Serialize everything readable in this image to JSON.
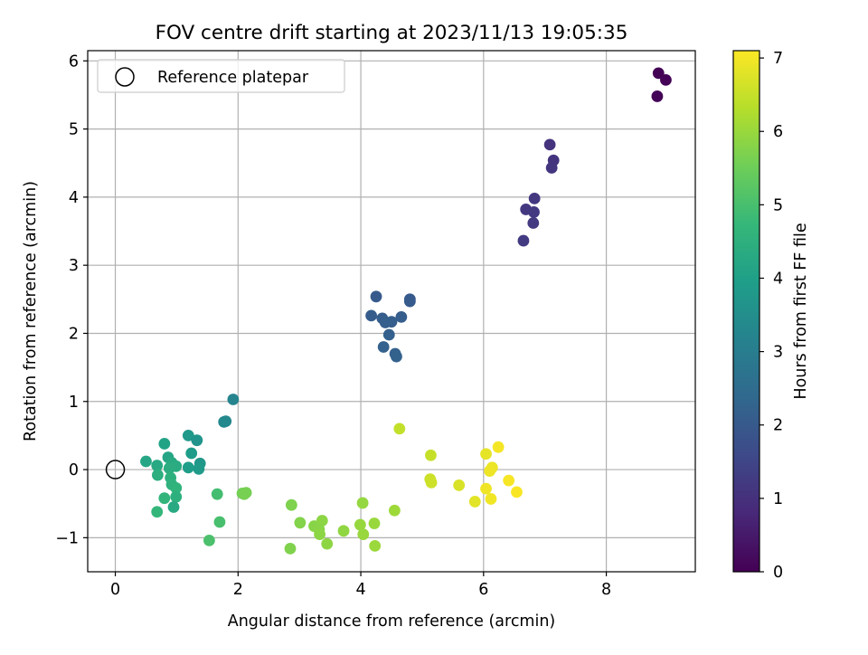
{
  "chart_data": {
    "type": "scatter",
    "title": "FOV centre drift starting at 2023/11/13 19:05:35",
    "xlabel": "Angular distance from reference (arcmin)",
    "ylabel": "Rotation from reference (arcmin)",
    "xlim": [
      -0.45,
      9.45
    ],
    "ylim": [
      -1.5,
      6.15
    ],
    "xticks": [
      0,
      2,
      4,
      6,
      8
    ],
    "yticks": [
      -1,
      0,
      1,
      2,
      3,
      4,
      5,
      6
    ],
    "xtick_labels": [
      "0",
      "2",
      "4",
      "6",
      "8"
    ],
    "ytick_labels": [
      "−1",
      "0",
      "1",
      "2",
      "3",
      "4",
      "5",
      "6"
    ],
    "grid": true,
    "legend": {
      "placement": "top-left",
      "label": "Reference platepar",
      "marker": "hollow-circle"
    },
    "reference_point": {
      "x": 0,
      "y": 0
    },
    "colorbar": {
      "label": "Hours from first FF file",
      "colormap": "viridis",
      "range": [
        0,
        7.1
      ],
      "ticks": [
        0,
        1,
        2,
        3,
        4,
        5,
        6,
        7
      ],
      "tick_labels": [
        "0",
        "1",
        "2",
        "3",
        "4",
        "5",
        "6",
        "7"
      ]
    },
    "colormap_stops": [
      "#440154",
      "#482878",
      "#3e4989",
      "#31688e",
      "#26828e",
      "#1f9e89",
      "#35b779",
      "#6ece58",
      "#b5de2b",
      "#fde725"
    ],
    "points": [
      {
        "x": 8.85,
        "y": 5.82,
        "hours": 0.02
      },
      {
        "x": 8.97,
        "y": 5.72,
        "hours": 0.05
      },
      {
        "x": 8.83,
        "y": 5.48,
        "hours": 0.08
      },
      {
        "x": 7.08,
        "y": 4.77,
        "hours": 1.05
      },
      {
        "x": 7.14,
        "y": 4.54,
        "hours": 1.08
      },
      {
        "x": 7.11,
        "y": 4.43,
        "hours": 1.1
      },
      {
        "x": 6.83,
        "y": 3.98,
        "hours": 1.15
      },
      {
        "x": 6.69,
        "y": 3.82,
        "hours": 1.18
      },
      {
        "x": 6.82,
        "y": 3.78,
        "hours": 1.2
      },
      {
        "x": 6.81,
        "y": 3.62,
        "hours": 1.22
      },
      {
        "x": 6.65,
        "y": 3.36,
        "hours": 1.25
      },
      {
        "x": 4.25,
        "y": 2.54,
        "hours": 2.0
      },
      {
        "x": 4.8,
        "y": 2.5,
        "hours": 2.02
      },
      {
        "x": 4.8,
        "y": 2.47,
        "hours": 2.04
      },
      {
        "x": 4.17,
        "y": 2.26,
        "hours": 2.06
      },
      {
        "x": 4.35,
        "y": 2.22,
        "hours": 2.08
      },
      {
        "x": 4.66,
        "y": 2.24,
        "hours": 2.1
      },
      {
        "x": 4.5,
        "y": 2.17,
        "hours": 2.12
      },
      {
        "x": 4.4,
        "y": 2.16,
        "hours": 2.14
      },
      {
        "x": 4.46,
        "y": 1.98,
        "hours": 2.16
      },
      {
        "x": 4.37,
        "y": 1.8,
        "hours": 2.18
      },
      {
        "x": 4.56,
        "y": 1.7,
        "hours": 2.2
      },
      {
        "x": 4.58,
        "y": 1.66,
        "hours": 2.22
      },
      {
        "x": 1.92,
        "y": 1.03,
        "hours": 3.2
      },
      {
        "x": 1.8,
        "y": 0.71,
        "hours": 3.3
      },
      {
        "x": 1.77,
        "y": 0.7,
        "hours": 3.35
      },
      {
        "x": 1.19,
        "y": 0.5,
        "hours": 3.8
      },
      {
        "x": 1.33,
        "y": 0.43,
        "hours": 3.7
      },
      {
        "x": 1.24,
        "y": 0.24,
        "hours": 3.9
      },
      {
        "x": 1.38,
        "y": 0.09,
        "hours": 3.75
      },
      {
        "x": 1.19,
        "y": 0.03,
        "hours": 3.95
      },
      {
        "x": 1.36,
        "y": 0.01,
        "hours": 3.85
      },
      {
        "x": 0.8,
        "y": 0.38,
        "hours": 4.1
      },
      {
        "x": 0.86,
        "y": 0.18,
        "hours": 4.15
      },
      {
        "x": 0.5,
        "y": 0.12,
        "hours": 4.2
      },
      {
        "x": 0.68,
        "y": 0.06,
        "hours": 4.25
      },
      {
        "x": 0.92,
        "y": 0.1,
        "hours": 4.3
      },
      {
        "x": 0.99,
        "y": 0.05,
        "hours": 4.35
      },
      {
        "x": 0.88,
        "y": 0.02,
        "hours": 4.4
      },
      {
        "x": 0.69,
        "y": -0.08,
        "hours": 4.45
      },
      {
        "x": 0.9,
        "y": -0.12,
        "hours": 4.5
      },
      {
        "x": 0.92,
        "y": -0.22,
        "hours": 4.55
      },
      {
        "x": 0.99,
        "y": -0.27,
        "hours": 4.6
      },
      {
        "x": 0.8,
        "y": -0.42,
        "hours": 4.65
      },
      {
        "x": 0.99,
        "y": -0.4,
        "hours": 4.5
      },
      {
        "x": 0.95,
        "y": -0.55,
        "hours": 4.3
      },
      {
        "x": 0.68,
        "y": -0.62,
        "hours": 4.7
      },
      {
        "x": 1.66,
        "y": -0.36,
        "hours": 4.95
      },
      {
        "x": 1.7,
        "y": -0.77,
        "hours": 5.0
      },
      {
        "x": 1.53,
        "y": -1.04,
        "hours": 5.05
      },
      {
        "x": 2.07,
        "y": -0.35,
        "hours": 5.55
      },
      {
        "x": 2.13,
        "y": -0.34,
        "hours": 5.6
      },
      {
        "x": 2.1,
        "y": -0.36,
        "hours": 5.62
      },
      {
        "x": 2.87,
        "y": -0.52,
        "hours": 5.7
      },
      {
        "x": 3.01,
        "y": -0.78,
        "hours": 5.75
      },
      {
        "x": 2.85,
        "y": -1.16,
        "hours": 5.72
      },
      {
        "x": 3.24,
        "y": -0.83,
        "hours": 5.8
      },
      {
        "x": 3.37,
        "y": -0.75,
        "hours": 5.85
      },
      {
        "x": 3.32,
        "y": -0.88,
        "hours": 5.82
      },
      {
        "x": 3.33,
        "y": -0.95,
        "hours": 5.86
      },
      {
        "x": 3.45,
        "y": -1.09,
        "hours": 5.88
      },
      {
        "x": 3.72,
        "y": -0.9,
        "hours": 5.9
      },
      {
        "x": 4.03,
        "y": -0.49,
        "hours": 5.95
      },
      {
        "x": 3.99,
        "y": -0.81,
        "hours": 5.97
      },
      {
        "x": 4.04,
        "y": -0.95,
        "hours": 5.99
      },
      {
        "x": 4.22,
        "y": -0.79,
        "hours": 6.0
      },
      {
        "x": 4.23,
        "y": -1.12,
        "hours": 6.02
      },
      {
        "x": 4.55,
        "y": -0.6,
        "hours": 6.05
      },
      {
        "x": 4.63,
        "y": 0.6,
        "hours": 6.45
      },
      {
        "x": 5.14,
        "y": 0.21,
        "hours": 6.5
      },
      {
        "x": 5.13,
        "y": -0.14,
        "hours": 6.55
      },
      {
        "x": 5.15,
        "y": -0.19,
        "hours": 6.57
      },
      {
        "x": 5.6,
        "y": -0.23,
        "hours": 6.7
      },
      {
        "x": 5.86,
        "y": -0.47,
        "hours": 6.8
      },
      {
        "x": 6.04,
        "y": 0.23,
        "hours": 6.85
      },
      {
        "x": 6.24,
        "y": 0.33,
        "hours": 7.0
      },
      {
        "x": 6.14,
        "y": 0.03,
        "hours": 6.9
      },
      {
        "x": 6.1,
        "y": -0.02,
        "hours": 6.92
      },
      {
        "x": 6.04,
        "y": -0.28,
        "hours": 6.95
      },
      {
        "x": 6.12,
        "y": -0.43,
        "hours": 6.97
      },
      {
        "x": 6.41,
        "y": -0.16,
        "hours": 7.02
      },
      {
        "x": 6.54,
        "y": -0.33,
        "hours": 7.05
      }
    ]
  }
}
